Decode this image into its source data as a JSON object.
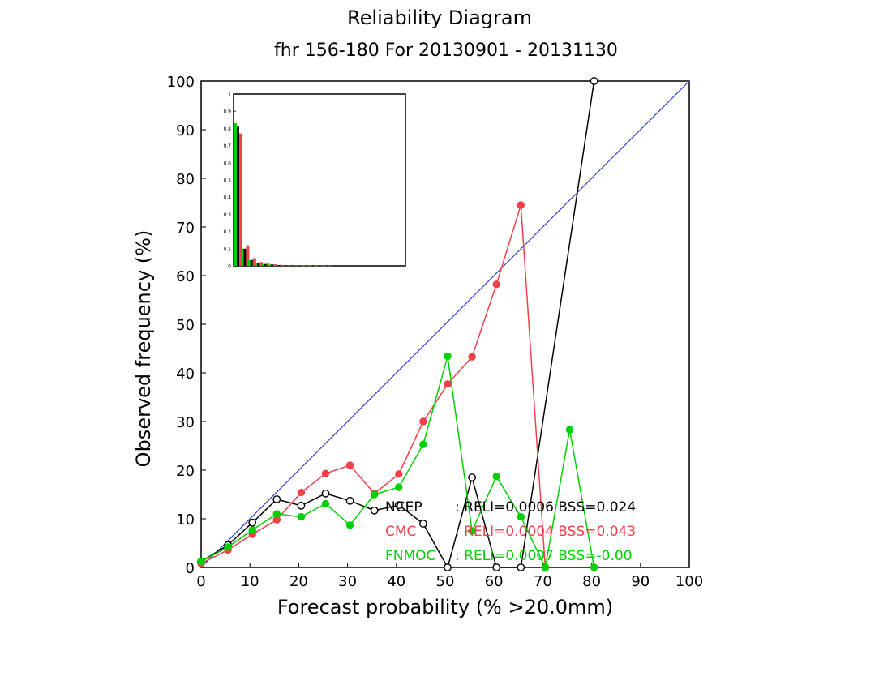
{
  "chart_data": {
    "type": "line",
    "title": "Reliability Diagram",
    "subtitle": "fhr 156-180 For 20130901 - 20131130",
    "xlabel": "Forecast probability (% >20.0mm)",
    "ylabel": "Observed frequency (%)",
    "xlim": [
      0,
      100
    ],
    "ylim": [
      0,
      100
    ],
    "xticks": [
      "0",
      "10",
      "20",
      "30",
      "40",
      "50",
      "60",
      "70",
      "80",
      "90",
      "100"
    ],
    "yticks": [
      "0",
      "10",
      "20",
      "30",
      "40",
      "50",
      "60",
      "70",
      "80",
      "90",
      "100"
    ],
    "diagonal_color": "#2f3bd1",
    "series": [
      {
        "name": "NCEP",
        "color": "#000000",
        "marker": "open-circle",
        "x": [
          0,
          5.5,
          10.5,
          15.5,
          20.5,
          25.5,
          30.5,
          35.5,
          40.5,
          45.5,
          50.5,
          55.5,
          60.5,
          65.5,
          80.5
        ],
        "y": [
          1.2,
          4.6,
          9.2,
          14.0,
          12.7,
          15.2,
          13.7,
          11.7,
          12.8,
          9.0,
          0,
          18.5,
          0,
          0,
          100
        ]
      },
      {
        "name": "CMC",
        "color": "#f0404a",
        "marker": "filled-circle",
        "x": [
          0,
          5.5,
          10.5,
          15.5,
          20.5,
          25.5,
          30.5,
          35.5,
          40.5,
          45.5,
          50.5,
          55.5,
          60.5,
          65.5,
          70.5
        ],
        "y": [
          0.8,
          3.6,
          6.8,
          9.8,
          15.4,
          19.3,
          21.0,
          15.2,
          19.2,
          30.0,
          37.7,
          43.3,
          58.2,
          74.5,
          0
        ]
      },
      {
        "name": "FNMOC",
        "color": "#00d000",
        "marker": "filled-circle",
        "x": [
          0,
          5.5,
          10.5,
          15.5,
          20.5,
          25.5,
          30.5,
          35.5,
          40.5,
          45.5,
          50.5,
          55.5,
          60.5,
          65.5,
          70.5,
          75.5,
          80.5
        ],
        "y": [
          1.2,
          4.2,
          7.7,
          11.0,
          10.4,
          13.1,
          8.7,
          15.0,
          16.5,
          25.3,
          43.4,
          7.5,
          18.7,
          10.4,
          0,
          28.3,
          0
        ]
      }
    ],
    "legend": [
      {
        "label": "NCEP",
        "stats": ": RELI=0.0006 BSS=0.024",
        "color": "#000000"
      },
      {
        "label": "CMC",
        "stats": ": RELI=0.0004 BSS=0.043",
        "color": "#f0404a"
      },
      {
        "label": "FNMOC",
        "stats": ": RELI=0.0007 BSS=-0.00",
        "color": "#00d000"
      }
    ],
    "legend_position": "bottom-right",
    "inset": {
      "type": "bar",
      "ylim": [
        0,
        1
      ],
      "yticks": [
        "0",
        "0.1",
        "0.2",
        "0.3",
        "0.4",
        "0.5",
        "0.6",
        "0.7",
        "0.8",
        "0.9",
        "1"
      ],
      "categories": [
        0,
        5.5,
        10.5,
        15.5,
        20.5,
        25.5,
        30.5,
        35.5,
        40.5,
        45.5,
        50.5,
        55.5,
        60.5,
        65.5
      ],
      "series": [
        {
          "name": "NCEP",
          "color": "#000000",
          "values": [
            0.81,
            0.1,
            0.034,
            0.018,
            0.011,
            0.008,
            0.005,
            0.004,
            0.003,
            0.002,
            0.0015,
            0.001,
            0.0008,
            0.0005
          ]
        },
        {
          "name": "CMC",
          "color": "#f0404a",
          "values": [
            0.77,
            0.12,
            0.045,
            0.022,
            0.013,
            0.009,
            0.006,
            0.005,
            0.004,
            0.003,
            0.002,
            0.0015,
            0.001,
            0.0008
          ]
        },
        {
          "name": "FNMOC",
          "color": "#00d000",
          "values": [
            0.83,
            0.1,
            0.033,
            0.016,
            0.01,
            0.007,
            0.005,
            0.004,
            0.003,
            0.002,
            0.0015,
            0.001,
            0.0008,
            0.0005
          ]
        }
      ]
    }
  }
}
